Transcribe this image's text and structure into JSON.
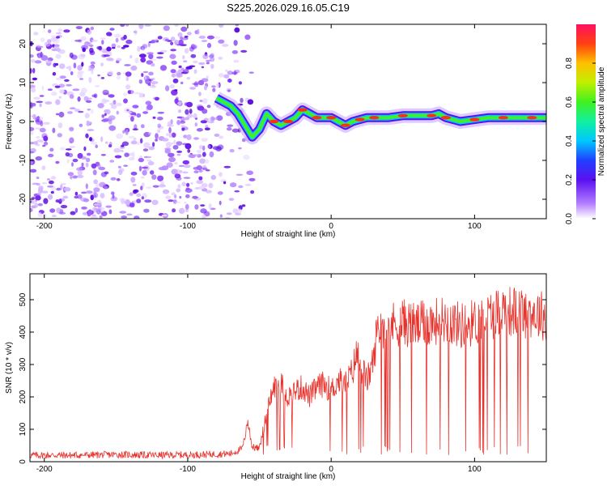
{
  "chart_data": [
    {
      "type": "heatmap",
      "title": "S225.2026.029.16.05.C19",
      "xlabel": "Height of straight line (km)",
      "ylabel": "Frequency (Hz)",
      "xlim": [
        -210,
        150
      ],
      "ylim": [
        -25,
        25
      ],
      "xticks": [
        -200,
        -100,
        0,
        100
      ],
      "xtick_labels": [
        "-200",
        "-100",
        "0",
        "100"
      ],
      "yticks": [
        -20,
        -10,
        0,
        10,
        20
      ],
      "ytick_labels": [
        "-20",
        "-10",
        "0",
        "10",
        "20"
      ],
      "noise_region_x": [
        -210,
        -55
      ],
      "signal_trace": {
        "x": [
          -80,
          -75,
          -70,
          -65,
          -60,
          -55,
          -50,
          -45,
          -40,
          -35,
          -30,
          -25,
          -20,
          -15,
          -10,
          -5,
          0,
          5,
          10,
          15,
          20,
          25,
          30,
          40,
          50,
          60,
          70,
          75,
          80,
          90,
          100,
          110,
          120,
          130,
          140,
          150
        ],
        "y": [
          6,
          5,
          4,
          2,
          -1,
          -4,
          -2,
          2,
          0,
          -1,
          0,
          1,
          3,
          2,
          1,
          1,
          1,
          0,
          -1,
          0,
          0.5,
          1,
          1,
          1,
          1.5,
          1.5,
          1.5,
          2,
          1,
          0,
          0.5,
          1,
          1,
          1,
          1,
          1
        ]
      },
      "colorbar": {
        "label": "Normalized spectral amplitude",
        "range": [
          0,
          1
        ],
        "ticks": [
          0.0,
          0.2,
          0.4,
          0.6,
          0.8
        ],
        "tick_labels": [
          "0.0",
          "0.2",
          "0.4",
          "0.6",
          "0.8"
        ]
      }
    },
    {
      "type": "line",
      "xlabel": "Height of straight line (km)",
      "ylabel": "SNR (10 * v/v)",
      "xlim": [
        -210,
        150
      ],
      "ylim": [
        0,
        580
      ],
      "xticks": [
        -200,
        -100,
        0,
        100
      ],
      "xtick_labels": [
        "-200",
        "-100",
        "0",
        "100"
      ],
      "yticks": [
        0,
        100,
        200,
        300,
        400,
        500
      ],
      "ytick_labels": [
        "0",
        "100",
        "200",
        "300",
        "400",
        "500"
      ],
      "color": "#e8332d",
      "series": [
        {
          "name": "SNR",
          "x": [
            -210,
            -180,
            -150,
            -120,
            -90,
            -70,
            -62,
            -58,
            -55,
            -50,
            -45,
            -40,
            -35,
            -30,
            -25,
            -20,
            -15,
            -10,
            -5,
            0,
            5,
            10,
            15,
            18,
            20,
            25,
            30,
            32,
            35,
            40,
            50,
            60,
            70,
            80,
            90,
            100,
            110,
            120,
            130,
            140,
            150
          ],
          "values": [
            20,
            20,
            22,
            20,
            22,
            25,
            40,
            120,
            45,
            40,
            150,
            230,
            240,
            200,
            220,
            230,
            200,
            230,
            240,
            220,
            250,
            240,
            280,
            340,
            300,
            250,
            320,
            410,
            420,
            420,
            430,
            420,
            430,
            440,
            420,
            430,
            450,
            470,
            460,
            460,
            450
          ]
        }
      ]
    }
  ]
}
